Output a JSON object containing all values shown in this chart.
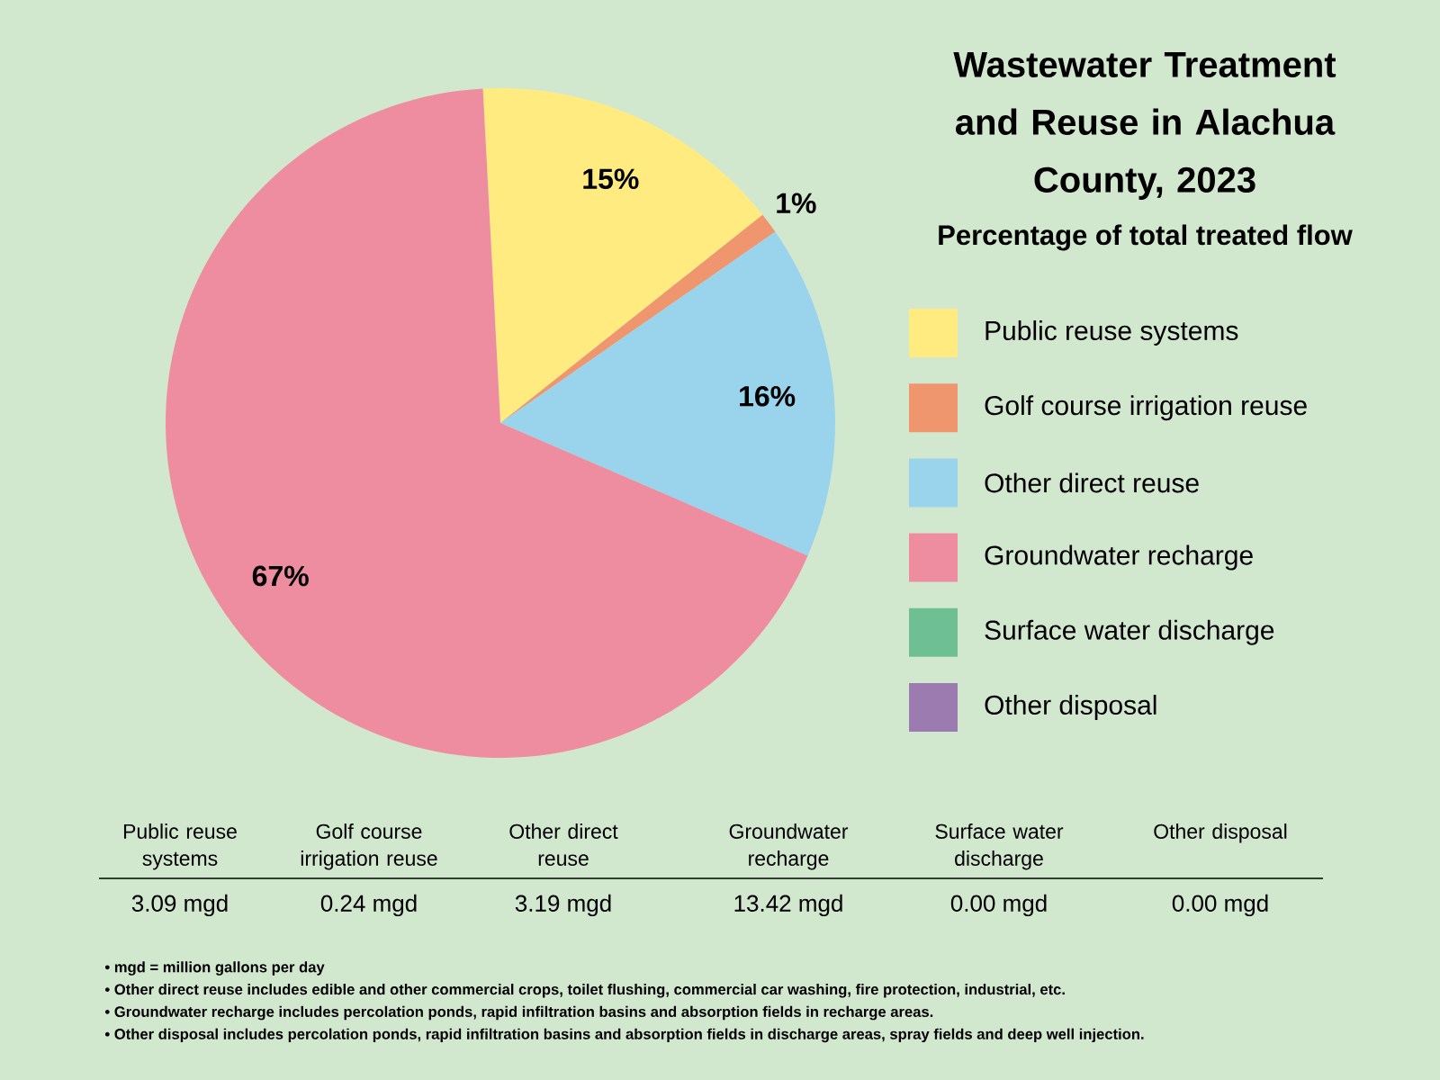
{
  "chart_data": {
    "type": "pie",
    "title": "Wastewater Treatment and Reuse in Alachua County, 2023",
    "subtitle": "Percentage of total treated flow",
    "categories": [
      "Public reuse systems",
      "Golf course irrigation reuse",
      "Other direct reuse",
      "Groundwater recharge",
      "Surface water discharge",
      "Other disposal"
    ],
    "values": [
      15,
      1,
      16,
      67,
      0,
      0
    ],
    "value_labels": [
      "15%",
      "1%",
      "16%",
      "67%",
      null,
      null
    ],
    "colors": [
      "#ffeb80",
      "#f0966e",
      "#9ad4ec",
      "#ef8da0",
      "#6fbf94",
      "#9b7bb0"
    ],
    "legend": "right",
    "annotations": [
      "3.09 mgd",
      "0.24 mgd",
      "3.19 mgd",
      "13.42 mgd",
      "0.00 mgd",
      "0.00 mgd",
      "• mgd = million gallons per day",
      "• Other direct reuse includes edible and other commercial crops, toilet flushing, commercial car washing, fire protection, industrial, etc.",
      "• Groundwater recharge includes percolation ponds, rapid infiltration basins and absorption fields in recharge areas.",
      "• Other disposal includes percolation ponds, rapid infiltration basins and absorption fields in discharge areas, spray fields and deep well injection."
    ]
  }
}
